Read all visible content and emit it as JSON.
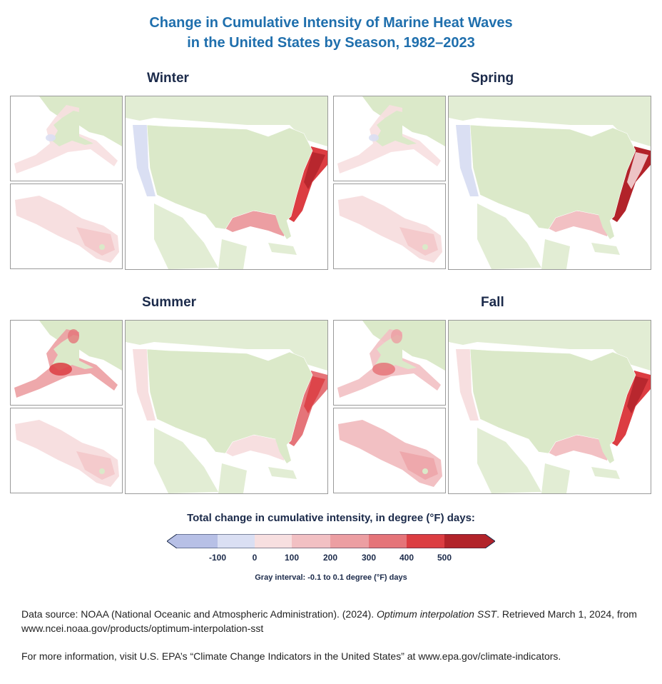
{
  "title_line1": "Change in Cumulative Intensity of Marine Heat Waves",
  "title_line2": "in the United States by Season, 1982–2023",
  "seasons": [
    {
      "label": "Winter",
      "alaska_level": 1,
      "hawaii_level": 1,
      "conus_east_level": 5,
      "conus_gulf_level": 3,
      "conus_west_level": -1
    },
    {
      "label": "Spring",
      "alaska_level": 1,
      "hawaii_level": 1,
      "conus_east_level": 6,
      "conus_gulf_level": 2,
      "conus_west_level": -1
    },
    {
      "label": "Summer",
      "alaska_level": 3,
      "hawaii_level": 1,
      "conus_east_level": 4,
      "conus_gulf_level": 1,
      "conus_west_level": 1
    },
    {
      "label": "Fall",
      "alaska_level": 2,
      "hawaii_level": 2,
      "conus_east_level": 5,
      "conus_gulf_level": 2,
      "conus_west_level": 1
    }
  ],
  "legend": {
    "title": "Total change in cumulative intensity, in degree (°F) days:",
    "ticks": [
      "-100",
      "0",
      "100",
      "200",
      "300",
      "400",
      "500"
    ],
    "colors": [
      "#b7c0e6",
      "#dadff3",
      "#f7dfe0",
      "#f2c0c3",
      "#ec9ea2",
      "#e57479",
      "#dc3d42",
      "#b2232a"
    ],
    "gray_note": "Gray interval: -0.1 to 0.1 degree (°F) days"
  },
  "colors": {
    "title": "#1f6fad",
    "land": "#dbe9c9",
    "ocean": "#ffffff",
    "heading": "#1b2a4a"
  },
  "source_prefix": "Data source: NOAA (National Oceanic and Atmospheric Administration). (2024). ",
  "source_title": "Optimum interpolation SST",
  "source_suffix": ". Retrieved March 1, 2024, from www.ncei.noaa.gov/products/optimum-interpolation-sst",
  "more_info": "For more information, visit U.S. EPA’s “Climate Change Indicators in the United States” at www.epa.gov/climate-indicators."
}
